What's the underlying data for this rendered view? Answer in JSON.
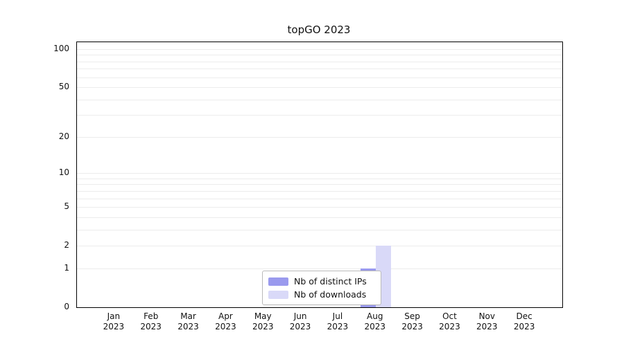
{
  "chart": {
    "title": "topGO 2023"
  },
  "chart_data": {
    "type": "bar",
    "title": "topGO 2023",
    "categories": [
      "Jan",
      "Feb",
      "Mar",
      "Apr",
      "May",
      "Jun",
      "Jul",
      "Aug",
      "Sep",
      "Oct",
      "Nov",
      "Dec"
    ],
    "category_year": "2023",
    "series": [
      {
        "name": "Nb of distinct IPs",
        "color": "#9a9aee",
        "values": [
          0,
          0,
          0,
          0,
          0,
          0,
          0,
          1,
          0,
          0,
          0,
          0
        ]
      },
      {
        "name": "Nb of downloads",
        "color": "#d9d9f8",
        "values": [
          0,
          0,
          0,
          0,
          0,
          0,
          0,
          2,
          0,
          0,
          0,
          0
        ]
      }
    ],
    "yscale": "log1p",
    "ylim": [
      0,
      100
    ],
    "yticks": [
      0,
      1,
      2,
      5,
      10,
      20,
      50,
      100
    ],
    "minor_gridlines": [
      1,
      2,
      3,
      4,
      5,
      6,
      7,
      8,
      9,
      10,
      20,
      30,
      40,
      50,
      60,
      70,
      80,
      90,
      100
    ],
    "xlabel": "",
    "ylabel": "",
    "grid": true,
    "legend_position": "inside-bottom-center"
  }
}
